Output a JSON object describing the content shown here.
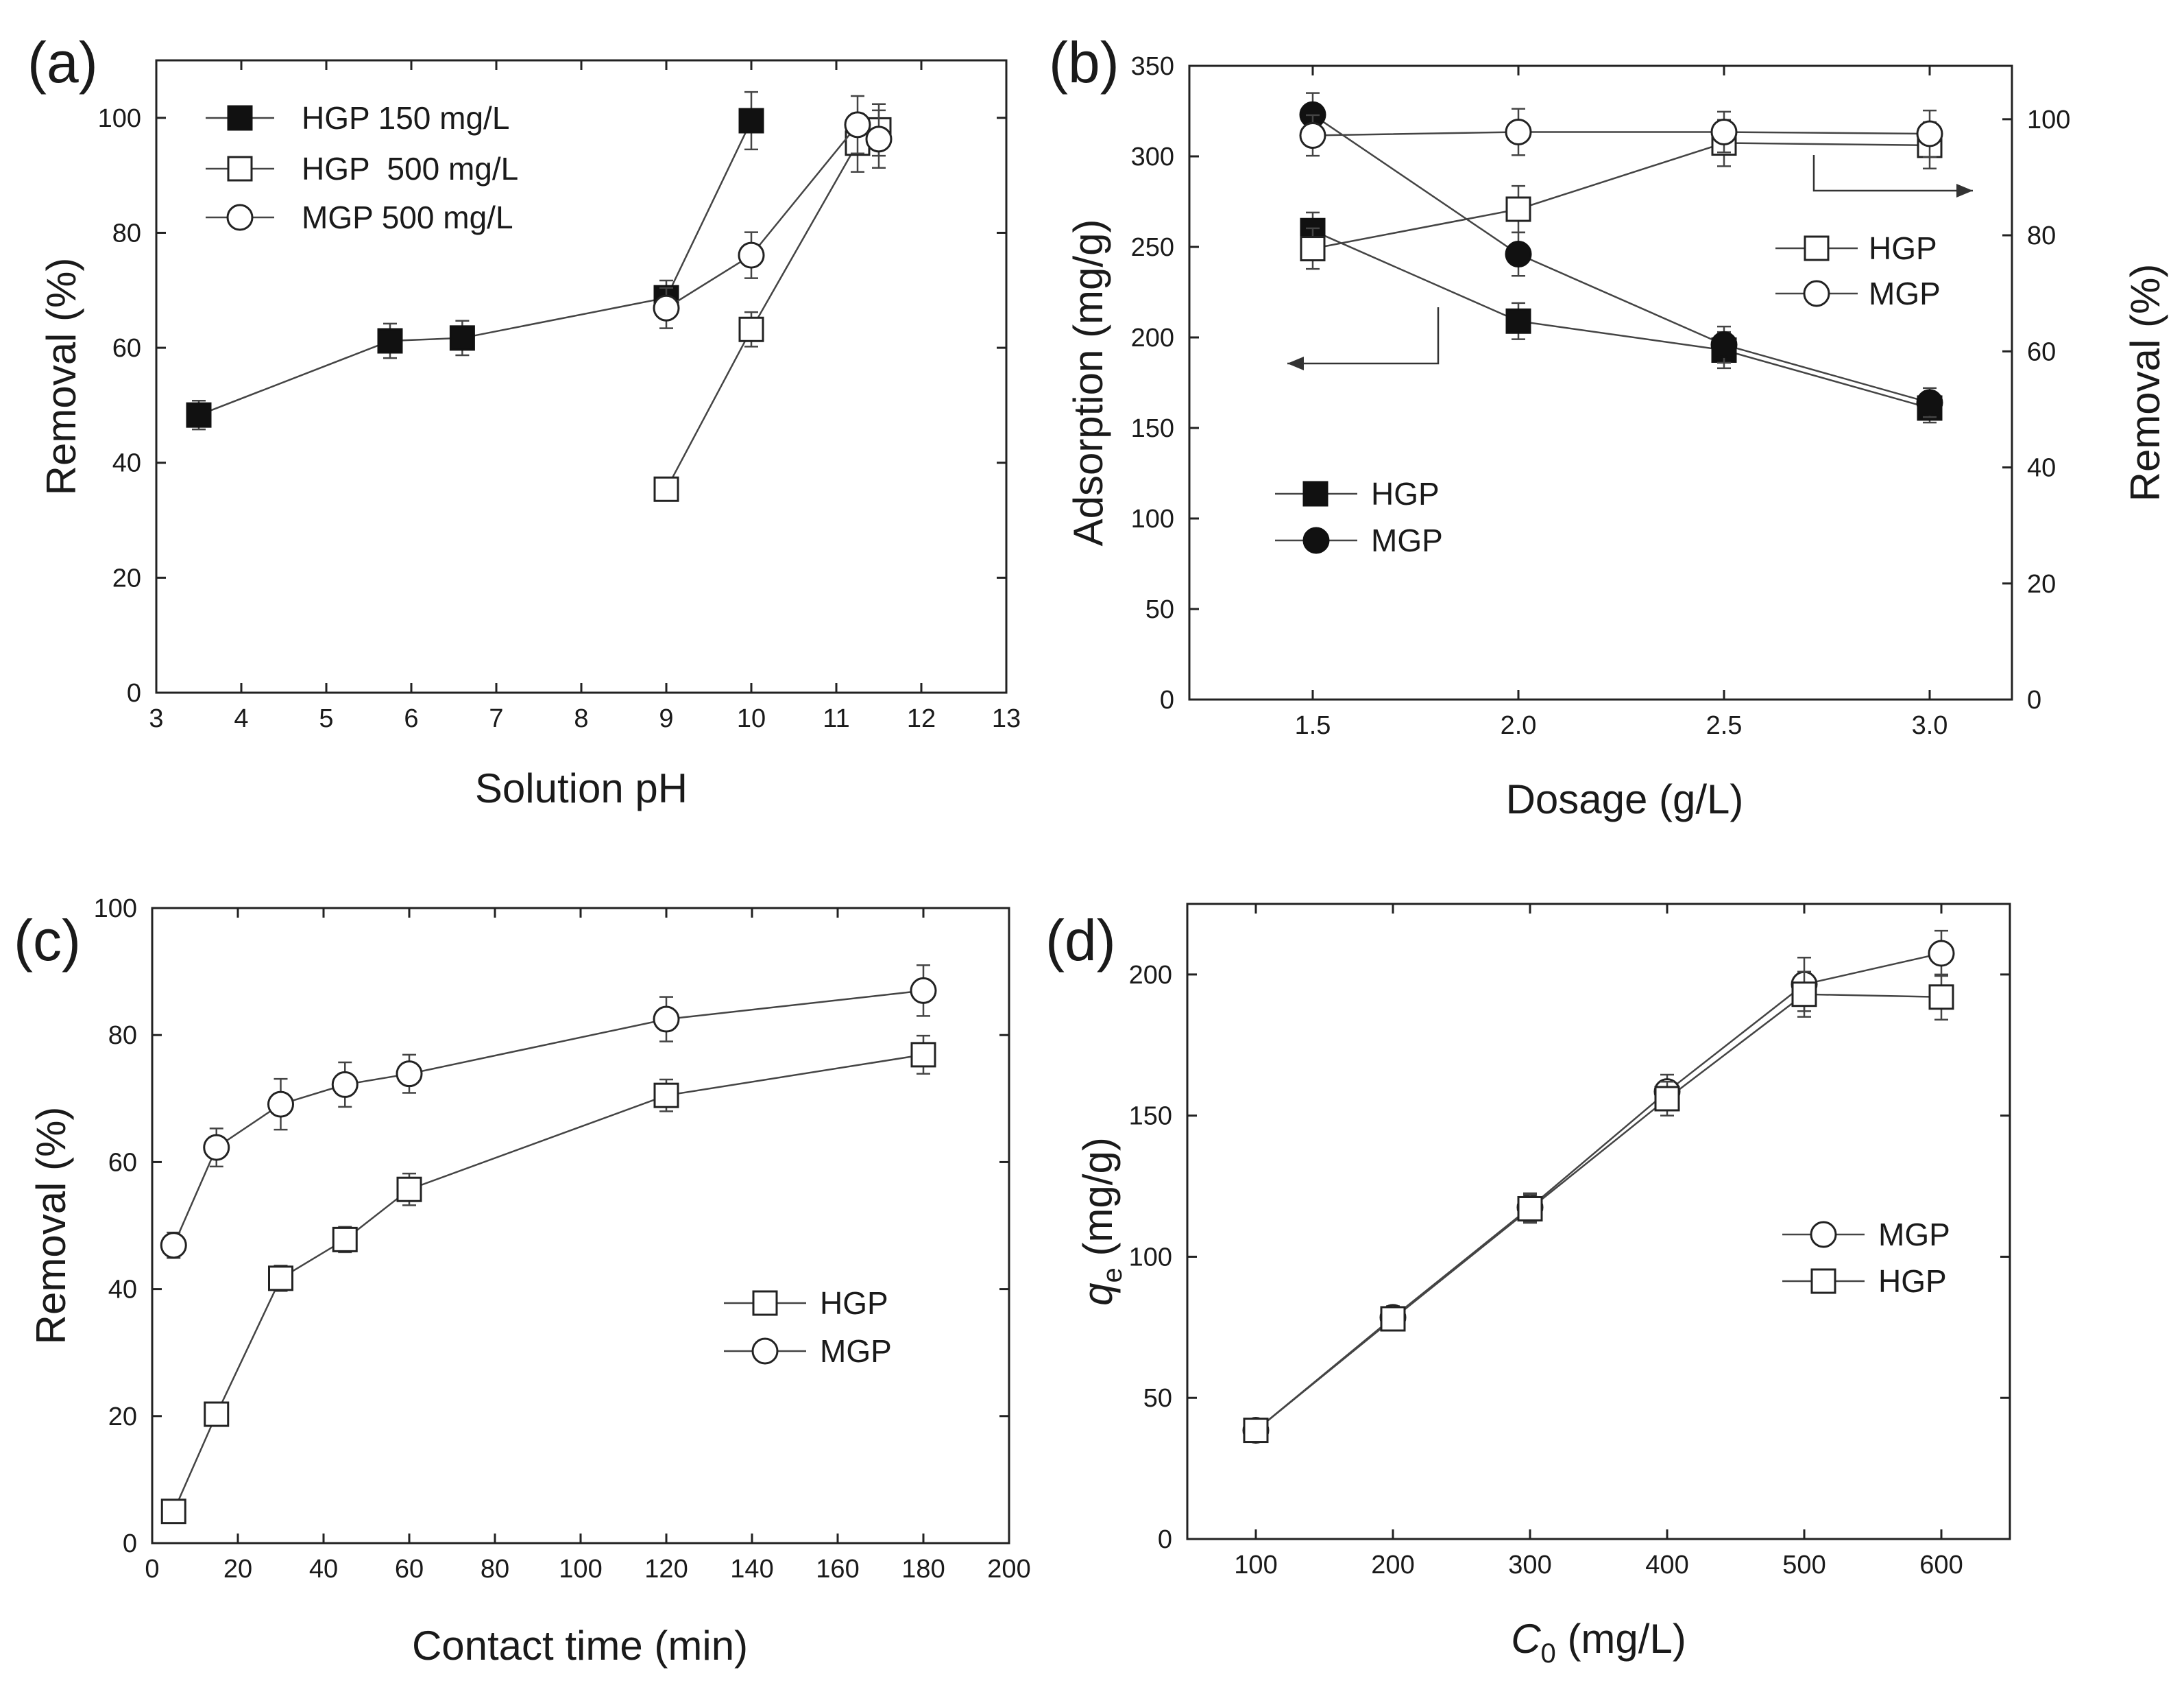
{
  "chart_data": [
    {
      "type": "line",
      "panel_label": "(a)",
      "xlabel": "Solution pH",
      "ylabel": "Removal (%)",
      "xlim": [
        3,
        13
      ],
      "ylim": [
        0,
        110
      ],
      "xticks": [
        3,
        4,
        5,
        6,
        7,
        8,
        9,
        10,
        11,
        12,
        13
      ],
      "xtick_labels": [
        "3",
        "4",
        "5",
        "6",
        "7",
        "8",
        "9",
        "10",
        "11",
        "12",
        "13"
      ],
      "yticks": [
        0,
        20,
        40,
        60,
        80,
        100
      ],
      "ytick_labels": [
        "0",
        "20",
        "40",
        "60",
        "80",
        "100"
      ],
      "legend_position": "top-left",
      "series": [
        {
          "name": "HGP 150 mg/L",
          "marker": "square-filled",
          "axis": "left",
          "x": [
            3.5,
            5.75,
            6.6,
            9.0,
            10.0
          ],
          "y": [
            48.3,
            61.2,
            61.7,
            68.7,
            99.5
          ],
          "err": [
            2.5,
            3.0,
            3.0,
            3.0,
            5.0
          ]
        },
        {
          "name": "HGP  500 mg/L",
          "marker": "square-open",
          "axis": "left",
          "x": [
            9.0,
            10.0,
            11.25,
            11.5
          ],
          "y": [
            35.4,
            63.2,
            95.6,
            97.9
          ],
          "err": [
            1.5,
            3.0,
            5.0,
            4.5
          ]
        },
        {
          "name": "MGP 500 mg/L",
          "marker": "circle-open",
          "axis": "left",
          "x": [
            9.0,
            10.0,
            11.25,
            11.5
          ],
          "y": [
            66.9,
            76.1,
            98.8,
            96.3
          ],
          "err": [
            3.5,
            4.0,
            5.0,
            5.0
          ]
        }
      ]
    },
    {
      "type": "line",
      "panel_label": "(b)",
      "xlabel": "Dosage (g/L)",
      "ylabel": "Adsorption (mg/g)",
      "ylabel_right": "Removal (%)",
      "xlim": [
        1.2,
        3.2
      ],
      "ylim": [
        0,
        350
      ],
      "ylim_right": [
        0,
        109.2
      ],
      "xticks": [
        1.5,
        2.0,
        2.5,
        3.0
      ],
      "xtick_labels": [
        "1.5",
        "2.0",
        "2.5",
        "3.0"
      ],
      "yticks": [
        0,
        50,
        100,
        150,
        200,
        250,
        300,
        350
      ],
      "ytick_labels": [
        "0",
        "50",
        "100",
        "150",
        "200",
        "250",
        "300",
        "350"
      ],
      "yticks_right": [
        0,
        20,
        40,
        60,
        80,
        100
      ],
      "ytick_labels_right": [
        "0",
        "20",
        "40",
        "60",
        "80",
        "100"
      ],
      "legend_positions": [
        "center-left",
        "upper-right"
      ],
      "series": [
        {
          "name": "HGP",
          "marker": "square-filled",
          "axis": "left",
          "x": [
            1.5,
            2.0,
            2.5,
            3.0
          ],
          "y": [
            259,
            209,
            193,
            161
          ],
          "err": [
            10,
            10,
            10,
            8
          ]
        },
        {
          "name": "MGP",
          "marker": "circle-filled",
          "axis": "left",
          "x": [
            1.5,
            2.0,
            2.5,
            3.0
          ],
          "y": [
            323,
            246,
            196,
            164
          ],
          "err": [
            12,
            12,
            10,
            8
          ]
        },
        {
          "name": "HGP",
          "marker": "square-open",
          "axis": "right",
          "x": [
            1.5,
            2.0,
            2.5,
            3.0
          ],
          "y": [
            77.7,
            84.5,
            95.9,
            95.5
          ],
          "err": [
            3.5,
            4.0,
            4.0,
            4.0
          ]
        },
        {
          "name": "MGP",
          "marker": "circle-open",
          "axis": "right",
          "x": [
            1.5,
            2.0,
            2.5,
            3.0
          ],
          "y": [
            97.2,
            97.8,
            97.8,
            97.5
          ],
          "err": [
            3.5,
            4.0,
            3.5,
            4.0
          ]
        }
      ],
      "annotations": [
        "arrow pointing left to Adsorption axis",
        "arrow pointing right to Removal axis"
      ]
    },
    {
      "type": "line",
      "panel_label": "(c)",
      "xlabel": "Contact time (min)",
      "ylabel": "Removal (%)",
      "xlim": [
        0,
        200
      ],
      "ylim": [
        0,
        100
      ],
      "xticks": [
        0,
        20,
        40,
        60,
        80,
        100,
        120,
        140,
        160,
        180,
        200
      ],
      "xtick_labels": [
        "0",
        "20",
        "40",
        "60",
        "80",
        "100",
        "120",
        "140",
        "160",
        "180",
        "200"
      ],
      "yticks": [
        0,
        20,
        40,
        60,
        80,
        100
      ],
      "ytick_labels": [
        "0",
        "20",
        "40",
        "60",
        "80",
        "100"
      ],
      "legend_position": "center-right",
      "series": [
        {
          "name": "HGP",
          "marker": "square-open",
          "axis": "left",
          "x": [
            5,
            15,
            30,
            45,
            60,
            120,
            180
          ],
          "y": [
            5,
            20.3,
            41.7,
            47.8,
            55.7,
            70.5,
            76.9
          ],
          "err": [
            1.0,
            0.8,
            2.0,
            2.0,
            2.5,
            2.5,
            3.0
          ]
        },
        {
          "name": "MGP",
          "marker": "circle-open",
          "axis": "left",
          "x": [
            5,
            15,
            30,
            45,
            60,
            120,
            180
          ],
          "y": [
            46.9,
            62.3,
            69.1,
            72.2,
            73.9,
            82.5,
            87.0
          ],
          "err": [
            2.0,
            3.0,
            4.0,
            3.5,
            3.0,
            3.5,
            4.0
          ]
        }
      ]
    },
    {
      "type": "line",
      "panel_label": "(d)",
      "xlabel": "C0 (mg/L)",
      "xlabel_main": "C",
      "xlabel_sub": "0",
      "xlabel_rest": " (mg/L)",
      "ylabel": "qe (mg/g)",
      "ylabel_main": "q",
      "ylabel_sub": "e",
      "ylabel_rest": " (mg/g)",
      "xlim": [
        50,
        650
      ],
      "ylim": [
        0,
        225
      ],
      "xticks": [
        100,
        200,
        300,
        400,
        500,
        600
      ],
      "xtick_labels": [
        "100",
        "200",
        "300",
        "400",
        "500",
        "600"
      ],
      "yticks": [
        0,
        50,
        100,
        150,
        200
      ],
      "ytick_labels": [
        "0",
        "50",
        "100",
        "150",
        "200"
      ],
      "legend_position": "center-right",
      "series": [
        {
          "name": "MGP",
          "marker": "circle-open",
          "axis": "left",
          "x": [
            100,
            200,
            300,
            400,
            500,
            600
          ],
          "y": [
            38.5,
            78.5,
            117.5,
            158.5,
            196.5,
            207.5
          ],
          "err": [
            2.5,
            4.0,
            5.0,
            6.0,
            9.5,
            8.0
          ]
        },
        {
          "name": "HGP",
          "marker": "square-open",
          "axis": "left",
          "x": [
            100,
            200,
            300,
            400,
            500,
            600
          ],
          "y": [
            38.5,
            78.0,
            117.0,
            156.0,
            193.0,
            192.0
          ],
          "err": [
            2.5,
            4.0,
            5.0,
            6.0,
            8.0,
            8.0
          ]
        }
      ]
    }
  ]
}
